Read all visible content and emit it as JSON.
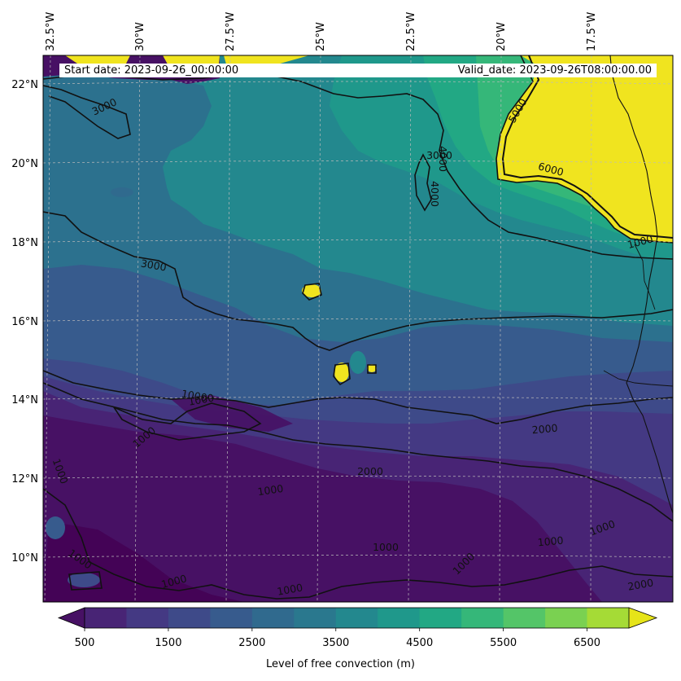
{
  "map": {
    "longitude_labels": [
      "32.5°W",
      "30°W",
      "27.5°W",
      "25°W",
      "22.5°W",
      "20°W",
      "17.5°W"
    ],
    "latitude_labels": [
      "22°N",
      "20°N",
      "18°N",
      "16°N",
      "14°N",
      "12°N",
      "10°N"
    ],
    "start_date": "Start date: 2023-09-26_00:00:00",
    "valid_date": "Valid_date: 2023-09-26T08:00:00.00",
    "contour_labels": [
      "1000",
      "1000",
      "1000",
      "1000",
      "1000",
      "1000",
      "1000",
      "1000",
      "1000",
      "1000",
      "1000",
      "1000",
      "2000",
      "2000",
      "2000",
      "3000",
      "3000",
      "3000",
      "4000",
      "4000",
      "5000",
      "6000",
      "1000"
    ],
    "colormap": "viridis"
  },
  "colorbar": {
    "title": "Level of free convection (m)",
    "tick_labels": [
      "500",
      "1500",
      "2500",
      "3500",
      "4500",
      "5500",
      "6500"
    ],
    "levels": [
      500,
      1000,
      1500,
      2000,
      2500,
      3000,
      3500,
      4000,
      4500,
      5000,
      5500,
      6000,
      6500,
      7000
    ],
    "colors": [
      "#471164",
      "#482475",
      "#443983",
      "#3e4a89",
      "#375b8d",
      "#306a8e",
      "#2a788e",
      "#23888e",
      "#1f988b",
      "#22a884",
      "#35b779",
      "#54c568",
      "#7ad151",
      "#a5db36",
      "#e6e419"
    ],
    "extend": "both"
  }
}
